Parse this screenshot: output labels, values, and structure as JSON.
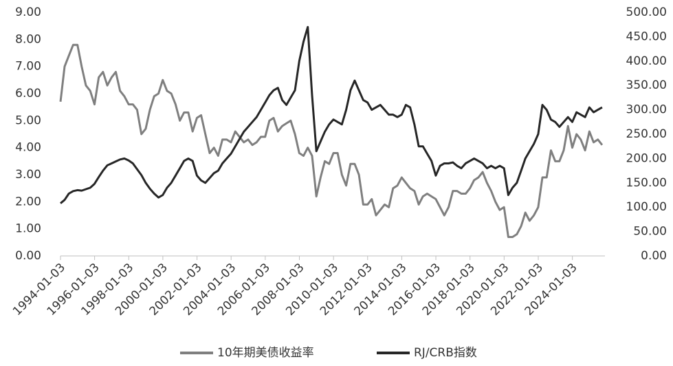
{
  "chart_data": {
    "type": "line",
    "x": [
      "1994-01-03",
      "1994-04-01",
      "1994-07-01",
      "1994-10-01",
      "1995-01-01",
      "1995-04-01",
      "1995-07-01",
      "1995-10-01",
      "1996-01-01",
      "1996-04-01",
      "1996-07-01",
      "1996-10-01",
      "1997-01-01",
      "1997-04-01",
      "1997-07-01",
      "1997-10-01",
      "1998-01-01",
      "1998-04-01",
      "1998-07-01",
      "1998-10-01",
      "1999-01-01",
      "1999-04-01",
      "1999-07-01",
      "1999-10-01",
      "2000-01-01",
      "2000-04-01",
      "2000-07-01",
      "2000-10-01",
      "2001-01-01",
      "2001-04-01",
      "2001-07-01",
      "2001-10-01",
      "2002-01-01",
      "2002-04-01",
      "2002-07-01",
      "2002-10-01",
      "2003-01-01",
      "2003-04-01",
      "2003-07-01",
      "2003-10-01",
      "2004-01-01",
      "2004-04-01",
      "2004-07-01",
      "2004-10-01",
      "2005-01-01",
      "2005-04-01",
      "2005-07-01",
      "2005-10-01",
      "2006-01-01",
      "2006-04-01",
      "2006-07-01",
      "2006-10-01",
      "2007-01-01",
      "2007-04-01",
      "2007-07-01",
      "2007-10-01",
      "2008-01-01",
      "2008-04-01",
      "2008-07-01",
      "2008-10-01",
      "2009-01-01",
      "2009-04-01",
      "2009-07-01",
      "2009-10-01",
      "2010-01-01",
      "2010-04-01",
      "2010-07-01",
      "2010-10-01",
      "2011-01-01",
      "2011-04-01",
      "2011-07-01",
      "2011-10-01",
      "2012-01-01",
      "2012-04-01",
      "2012-07-01",
      "2012-10-01",
      "2013-01-01",
      "2013-04-01",
      "2013-07-01",
      "2013-10-01",
      "2014-01-01",
      "2014-04-01",
      "2014-07-01",
      "2014-10-01",
      "2015-01-01",
      "2015-04-01",
      "2015-07-01",
      "2015-10-01",
      "2016-01-01",
      "2016-04-01",
      "2016-07-01",
      "2016-10-01",
      "2017-01-01",
      "2017-04-01",
      "2017-07-01",
      "2017-10-01",
      "2018-01-01",
      "2018-04-01",
      "2018-07-01",
      "2018-10-01",
      "2019-01-01",
      "2019-04-01",
      "2019-07-01",
      "2019-10-01",
      "2020-01-01",
      "2020-04-01",
      "2020-07-01",
      "2020-10-01",
      "2021-01-01",
      "2021-04-01",
      "2021-07-01",
      "2021-10-01",
      "2022-01-01",
      "2022-04-01",
      "2022-07-01",
      "2022-10-01",
      "2023-01-01",
      "2023-04-01",
      "2023-07-01",
      "2023-10-01",
      "2024-01-01",
      "2024-04-01",
      "2024-07-01",
      "2024-10-01",
      "2025-01-01",
      "2025-04-01",
      "2025-07-01",
      "2025-10-01"
    ],
    "series": [
      {
        "name": "10年期美债收益率",
        "color": "#7f7f7f",
        "values": [
          5.7,
          7.0,
          7.4,
          7.8,
          7.8,
          7.0,
          6.3,
          6.1,
          5.6,
          6.6,
          6.8,
          6.3,
          6.6,
          6.8,
          6.1,
          5.9,
          5.6,
          5.6,
          5.4,
          4.5,
          4.7,
          5.4,
          5.9,
          6.0,
          6.5,
          6.1,
          6.0,
          5.6,
          5.0,
          5.3,
          5.3,
          4.6,
          5.1,
          5.2,
          4.5,
          3.8,
          4.0,
          3.7,
          4.3,
          4.3,
          4.2,
          4.6,
          4.4,
          4.2,
          4.3,
          4.1,
          4.2,
          4.4,
          4.4,
          5.0,
          5.1,
          4.6,
          4.8,
          4.9,
          5.0,
          4.5,
          3.8,
          3.7,
          4.0,
          3.7,
          2.2,
          2.9,
          3.5,
          3.4,
          3.8,
          3.8,
          3.0,
          2.6,
          3.4,
          3.4,
          3.0,
          1.9,
          1.9,
          2.1,
          1.5,
          1.7,
          1.9,
          1.8,
          2.5,
          2.6,
          2.9,
          2.7,
          2.5,
          2.4,
          1.9,
          2.2,
          2.3,
          2.2,
          2.1,
          1.8,
          1.5,
          1.8,
          2.4,
          2.4,
          2.3,
          2.3,
          2.5,
          2.8,
          2.9,
          3.1,
          2.7,
          2.4,
          2.0,
          1.7,
          1.8,
          0.7,
          0.7,
          0.8,
          1.1,
          1.6,
          1.3,
          1.5,
          1.8,
          2.9,
          2.9,
          3.9,
          3.5,
          3.5,
          3.9,
          4.8,
          4.0,
          4.5,
          4.3,
          3.9,
          4.6,
          4.2,
          4.3,
          4.1
        ]
      },
      {
        "name": "RJ/CRB指数",
        "color": "#262626",
        "axis": "y2",
        "values": [
          108,
          115,
          128,
          133,
          135,
          134,
          137,
          140,
          148,
          162,
          175,
          186,
          190,
          194,
          198,
          200,
          196,
          190,
          178,
          166,
          150,
          138,
          128,
          120,
          125,
          140,
          150,
          165,
          180,
          195,
          200,
          195,
          165,
          155,
          150,
          160,
          170,
          175,
          190,
          200,
          210,
          225,
          240,
          255,
          265,
          275,
          285,
          300,
          315,
          330,
          340,
          345,
          320,
          310,
          325,
          340,
          400,
          440,
          470,
          330,
          215,
          235,
          255,
          270,
          280,
          275,
          270,
          300,
          340,
          360,
          340,
          320,
          315,
          300,
          305,
          310,
          300,
          290,
          290,
          285,
          290,
          310,
          305,
          270,
          225,
          225,
          210,
          195,
          165,
          185,
          190,
          190,
          192,
          185,
          180,
          190,
          195,
          200,
          195,
          190,
          180,
          185,
          180,
          185,
          180,
          125,
          140,
          150,
          175,
          200,
          215,
          230,
          250,
          310,
          300,
          280,
          275,
          265,
          275,
          285,
          275,
          295,
          290,
          285,
          305,
          295,
          300,
          305
        ]
      }
    ],
    "xlim": [
      "1994-01-03",
      "2025-11-30"
    ],
    "xticks": [
      "1994-01-03",
      "1996-01-03",
      "1998-01-03",
      "2000-01-03",
      "2002-01-03",
      "2004-01-03",
      "2006-01-03",
      "2008-01-03",
      "2010-01-03",
      "2012-01-03",
      "2014-01-03",
      "2016-01-03",
      "2018-01-03",
      "2020-01-03",
      "2022-01-03",
      "2024-01-03"
    ],
    "ylim": [
      0,
      9
    ],
    "yticks": [
      {
        "value": 0,
        "label": "0.00"
      },
      {
        "value": 1,
        "label": "1.00"
      },
      {
        "value": 2,
        "label": "2.00"
      },
      {
        "value": 3,
        "label": "3.00"
      },
      {
        "value": 4,
        "label": "4.00"
      },
      {
        "value": 5,
        "label": "5.00"
      },
      {
        "value": 6,
        "label": "6.00"
      },
      {
        "value": 7,
        "label": "7.00"
      },
      {
        "value": 8,
        "label": "8.00"
      },
      {
        "value": 9,
        "label": "9.00"
      }
    ],
    "y2lim": [
      0,
      500
    ],
    "y2ticks": [
      {
        "value": 0,
        "label": "0.00"
      },
      {
        "value": 50,
        "label": "50.00"
      },
      {
        "value": 100,
        "label": "100.00"
      },
      {
        "value": 150,
        "label": "150.00"
      },
      {
        "value": 200,
        "label": "200.00"
      },
      {
        "value": 250,
        "label": "250.00"
      },
      {
        "value": 300,
        "label": "300.00"
      },
      {
        "value": 350,
        "label": "350.00"
      },
      {
        "value": 400,
        "label": "400.00"
      },
      {
        "value": 450,
        "label": "450.00"
      },
      {
        "value": 500,
        "label": "500.00"
      }
    ],
    "grid": false,
    "legend": "bottom"
  }
}
